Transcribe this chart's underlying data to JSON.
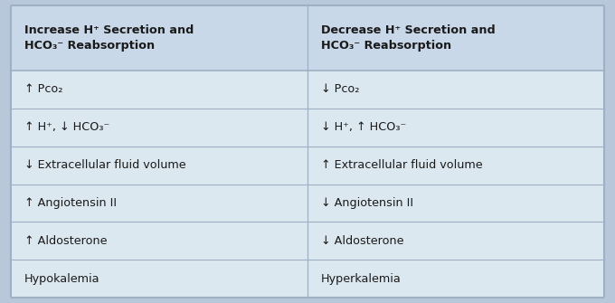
{
  "outer_bg": "#b8c8da",
  "header_bg": "#c8d8e8",
  "row_bg": "#dce8f0",
  "divider_color": "#9fb0c4",
  "header_text_color": "#1a1a1a",
  "body_text_color": "#1a1a1a",
  "col1_header_line1": "Increase H⁺ Secretion and",
  "col1_header_line2": "HCO₃⁻ Reabsorption",
  "col2_header_line1": "Decrease H⁺ Secretion and",
  "col2_header_line2": "HCO₃⁻ Reabsorption",
  "rows": [
    [
      "↑ Pco₂",
      "↓ Pco₂"
    ],
    [
      "↑ H⁺, ↓ HCO₃⁻",
      "↓ H⁺, ↑ HCO₃⁻"
    ],
    [
      "↓ Extracellular fluid volume",
      "↑ Extracellular fluid volume"
    ],
    [
      "↑ Angiotensin II",
      "↓ Angiotensin II"
    ],
    [
      "↑ Aldosterone",
      "↓ Aldosterone"
    ],
    [
      "Hypokalemia",
      "Hyperkalemia"
    ]
  ],
  "figsize": [
    6.8,
    3.35
  ],
  "dpi": 100
}
